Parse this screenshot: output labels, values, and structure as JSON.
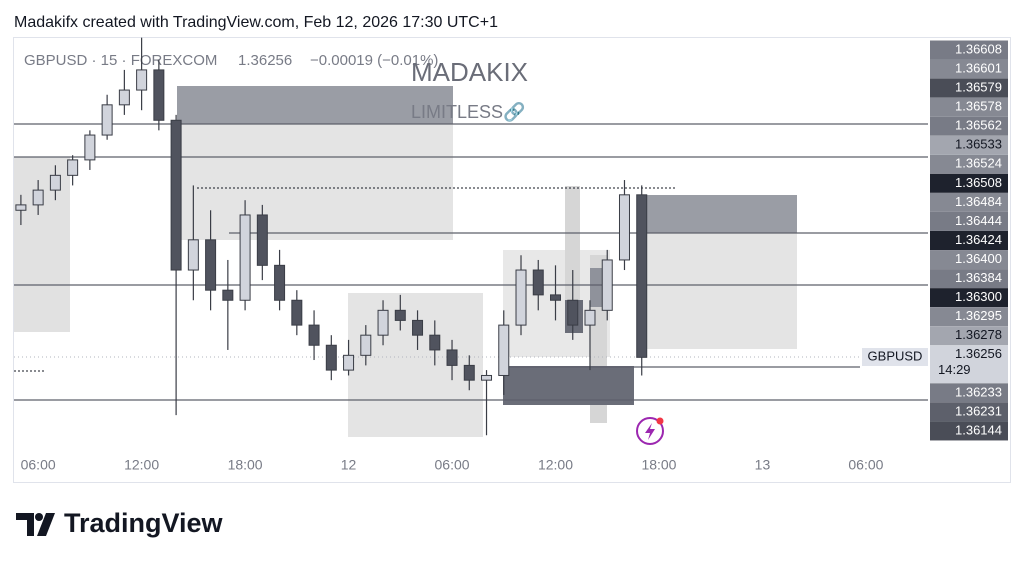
{
  "header": {
    "text": "Madakifx created with TradingView.com, Feb 12, 2026 17:30 UTC+1"
  },
  "legend": {
    "symbol": "GBPUSD · 15 · FOREXCOM",
    "price": "1.36256",
    "change": "−0.00019 (−0.01%)"
  },
  "watermark": {
    "title": "MADAKIX",
    "subtitle": "LIMITLESS🔗"
  },
  "chart_data": {
    "type": "candlestick",
    "x": [
      -1,
      0,
      1,
      2,
      3,
      4,
      5,
      6,
      7,
      8,
      9,
      10,
      11,
      12,
      13,
      14,
      15,
      16,
      17,
      18,
      19,
      20,
      21,
      22,
      23,
      24,
      25,
      26,
      27,
      28,
      29,
      30,
      31,
      32,
      33,
      34,
      35
    ],
    "open": [
      1.36475,
      1.36483,
      1.36505,
      1.36527,
      1.3655,
      1.36587,
      1.36632,
      1.36654,
      1.36684,
      1.36609,
      1.36386,
      1.36431,
      1.36356,
      1.36341,
      1.36468,
      1.36393,
      1.36341,
      1.36304,
      1.36274,
      1.36237,
      1.36259,
      1.36289,
      1.36326,
      1.36311,
      1.36289,
      1.36267,
      1.36244,
      1.36222,
      1.36229,
      1.36304,
      1.36386,
      1.36349,
      1.36341,
      1.36304,
      1.36326,
      1.36401,
      1.36498
    ],
    "high": [
      1.36498,
      1.3652,
      1.36542,
      1.36557,
      1.36594,
      1.36647,
      1.36684,
      1.36732,
      1.36699,
      1.36617,
      1.36512,
      1.36475,
      1.36401,
      1.3649,
      1.36483,
      1.36416,
      1.36356,
      1.36326,
      1.36289,
      1.36282,
      1.36304,
      1.36341,
      1.36349,
      1.36326,
      1.36311,
      1.36282,
      1.36259,
      1.36237,
      1.36326,
      1.36408,
      1.36401,
      1.36393,
      1.36386,
      1.36341,
      1.36416,
      1.3652,
      1.36512
    ],
    "low": [
      1.36453,
      1.36468,
      1.3649,
      1.36512,
      1.36535,
      1.3658,
      1.36617,
      1.36624,
      1.36594,
      1.3617,
      1.36341,
      1.36326,
      1.36267,
      1.36326,
      1.36371,
      1.36326,
      1.36289,
      1.36252,
      1.36222,
      1.36229,
      1.36244,
      1.36274,
      1.36296,
      1.36267,
      1.36244,
      1.36222,
      1.36207,
      1.3614,
      1.362,
      1.36289,
      1.36326,
      1.36311,
      1.36282,
      1.36237,
      1.36311,
      1.36386,
      1.36229
    ],
    "close": [
      1.36483,
      1.36505,
      1.36527,
      1.3655,
      1.36587,
      1.36632,
      1.36654,
      1.36684,
      1.36609,
      1.36386,
      1.36431,
      1.36356,
      1.36341,
      1.36468,
      1.36393,
      1.36341,
      1.36304,
      1.36274,
      1.36237,
      1.36259,
      1.36289,
      1.36326,
      1.36311,
      1.36289,
      1.36267,
      1.36244,
      1.36222,
      1.36229,
      1.36304,
      1.36386,
      1.36349,
      1.36341,
      1.36304,
      1.36326,
      1.36401,
      1.36498,
      1.36256
    ],
    "up_color": "#d1d4dc",
    "down_color": "#50535e",
    "xlim": [
      -1.4,
      51.6
    ],
    "ylim": [
      1.36121,
      1.36733
    ],
    "xticks": [
      {
        "value": 0,
        "label": "06:00"
      },
      {
        "value": 6,
        "label": "12:00"
      },
      {
        "value": 12,
        "label": "18:00"
      },
      {
        "value": 18,
        "label": "12"
      },
      {
        "value": 24,
        "label": "06:00"
      },
      {
        "value": 30,
        "label": "12:00"
      },
      {
        "value": 36,
        "label": "18:00"
      },
      {
        "value": 42,
        "label": "13"
      },
      {
        "value": 48,
        "label": "06:00"
      }
    ]
  },
  "price_labels": [
    {
      "text": "1.36608",
      "color": "#787b86"
    },
    {
      "text": "1.36601",
      "color": "#868993"
    },
    {
      "text": "1.36579",
      "color": "#4a4d57"
    },
    {
      "text": "1.36578",
      "color": "#868993"
    },
    {
      "text": "1.36562",
      "color": "#787b86"
    },
    {
      "text": "1.36533",
      "color": "#a3a6af"
    },
    {
      "text": "1.36524",
      "color": "#868993"
    },
    {
      "text": "1.36508",
      "color": "#1e222d"
    },
    {
      "text": "1.36484",
      "color": "#868993"
    },
    {
      "text": "1.36444",
      "color": "#787b86"
    },
    {
      "text": "1.36424",
      "color": "#1e222d"
    },
    {
      "text": "1.36400",
      "color": "#868993"
    },
    {
      "text": "1.36384",
      "color": "#787b86"
    },
    {
      "text": "1.36300",
      "color": "#1e222d"
    },
    {
      "text": "1.36295",
      "color": "#868993"
    },
    {
      "text": "1.36278",
      "color": "#a3a6af"
    },
    {
      "text": "1.36256",
      "color": "#d1d4dc"
    },
    {
      "text": "1.36233",
      "color": "#787b86"
    },
    {
      "text": "1.36231",
      "color": "#5d606b"
    },
    {
      "text": "1.36144",
      "color": "#4a4d57"
    }
  ],
  "countdown": "14:29",
  "price_tag": "GBPUSD",
  "footer": {
    "brand": "TradingView"
  }
}
